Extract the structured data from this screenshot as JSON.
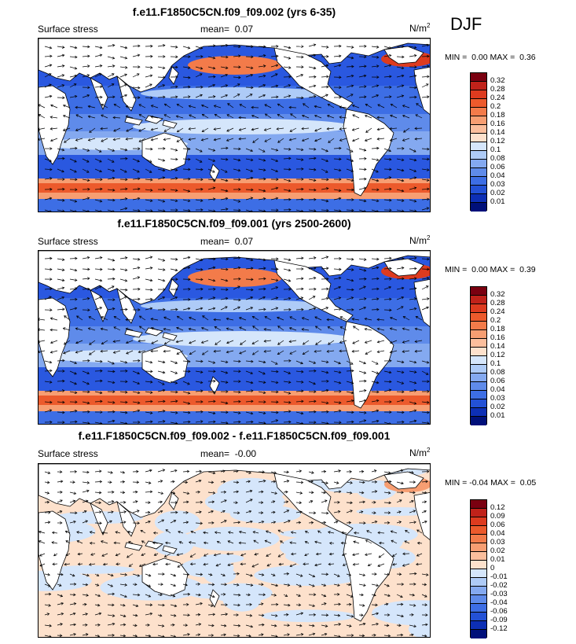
{
  "season": "DJF",
  "panels": [
    {
      "title": "f.e11.F1850C5CN.f09_f09.002 (yrs 6-35)",
      "left_label": "Surface stress",
      "mean_label": "mean=",
      "mean_value": "0.07",
      "units_base": "N/m",
      "units_exp": "2",
      "min_label": "MIN =",
      "min_value": "0.00",
      "max_label": "MAX =",
      "max_value": "0.36",
      "kind": "magnitude"
    },
    {
      "title": "f.e11.F1850C5CN.f09_f09.001 (yrs 2500-2600)",
      "left_label": "Surface stress",
      "mean_label": "mean=",
      "mean_value": "0.07",
      "units_base": "N/m",
      "units_exp": "2",
      "min_label": "MIN =",
      "min_value": "0.00",
      "max_label": "MAX =",
      "max_value": "0.39",
      "kind": "magnitude"
    },
    {
      "title": "f.e11.F1850C5CN.f09_f09.002 - f.e11.F1850C5CN.f09_f09.001",
      "left_label": "Surface stress",
      "mean_label": "mean=",
      "mean_value": "-0.00",
      "units_base": "N/m",
      "units_exp": "2",
      "min_label": "MIN =",
      "min_value": "-0.04",
      "max_label": "MAX =",
      "max_value": "0.05",
      "kind": "difference"
    }
  ],
  "colorbars": {
    "magnitude": {
      "levels": [
        "0.32",
        "0.28",
        "0.24",
        "0.2",
        "0.18",
        "0.16",
        "0.14",
        "0.12",
        "0.1",
        "0.08",
        "0.06",
        "0.04",
        "0.03",
        "0.02",
        "0.01"
      ],
      "colors": [
        "#7a0010",
        "#c0221a",
        "#dd3b1f",
        "#ec5a2c",
        "#f37b4a",
        "#f79e72",
        "#fbbe9c",
        "#fde1cc",
        "#d5e6fb",
        "#aecbf7",
        "#84a9f0",
        "#5f8bea",
        "#3d6ee5",
        "#2351d6",
        "#0d2fb5",
        "#00107a"
      ]
    },
    "difference": {
      "levels": [
        "0.12",
        "0.09",
        "0.06",
        "0.04",
        "0.03",
        "0.02",
        "0.01",
        "0",
        "-0.01",
        "-0.02",
        "-0.03",
        "-0.04",
        "-0.06",
        "-0.09",
        "-0.12"
      ],
      "colors": [
        "#7a0010",
        "#c0221a",
        "#dd3b1f",
        "#ec5a2c",
        "#f37b4a",
        "#f79e72",
        "#fbbe9c",
        "#fde1cc",
        "#d5e6fb",
        "#aecbf7",
        "#84a9f0",
        "#5f8bea",
        "#3d6ee5",
        "#2351d6",
        "#0d2fb5",
        "#00107a"
      ]
    }
  }
}
